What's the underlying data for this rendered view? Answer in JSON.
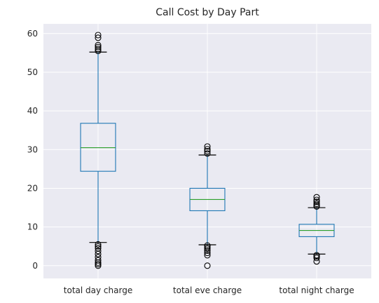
{
  "chart_data": {
    "type": "box",
    "title": "Call Cost by Day Part",
    "xlabel": "",
    "ylabel": "",
    "ylim": [
      -3.3,
      62.5
    ],
    "yticks": [
      0,
      10,
      20,
      30,
      40,
      50,
      60
    ],
    "grid": true,
    "colors": {
      "background": "#eaeaf2",
      "grid": "#ffffff",
      "box": "#1f77b4",
      "median": "#2ca02c",
      "flier": "#000000"
    },
    "categories": [
      "total day charge",
      "total eve charge",
      "total night charge"
    ],
    "boxes": [
      {
        "label": "total day charge",
        "whisker_low": 6.0,
        "q1": 24.4,
        "median": 30.5,
        "q3": 36.8,
        "whisker_high": 55.2,
        "fliers": [
          5.5,
          5.0,
          4.5,
          3.8,
          3.0,
          2.2,
          1.4,
          0.8,
          0.4,
          0.0,
          55.5,
          56.0,
          56.5,
          57.0,
          58.9,
          59.6
        ]
      },
      {
        "label": "total eve charge",
        "whisker_low": 5.4,
        "q1": 14.2,
        "median": 17.1,
        "q3": 20.0,
        "whisker_high": 28.6,
        "fliers": [
          5.2,
          4.8,
          4.4,
          3.9,
          3.3,
          2.7,
          0.0,
          29.0,
          29.6,
          30.1,
          30.8
        ]
      },
      {
        "label": "total night charge",
        "whisker_low": 3.0,
        "q1": 7.5,
        "median": 9.1,
        "q3": 10.7,
        "whisker_high": 15.0,
        "fliers": [
          2.7,
          2.4,
          2.0,
          1.1,
          15.3,
          15.6,
          16.0,
          16.5,
          17.0,
          17.7
        ]
      }
    ]
  }
}
